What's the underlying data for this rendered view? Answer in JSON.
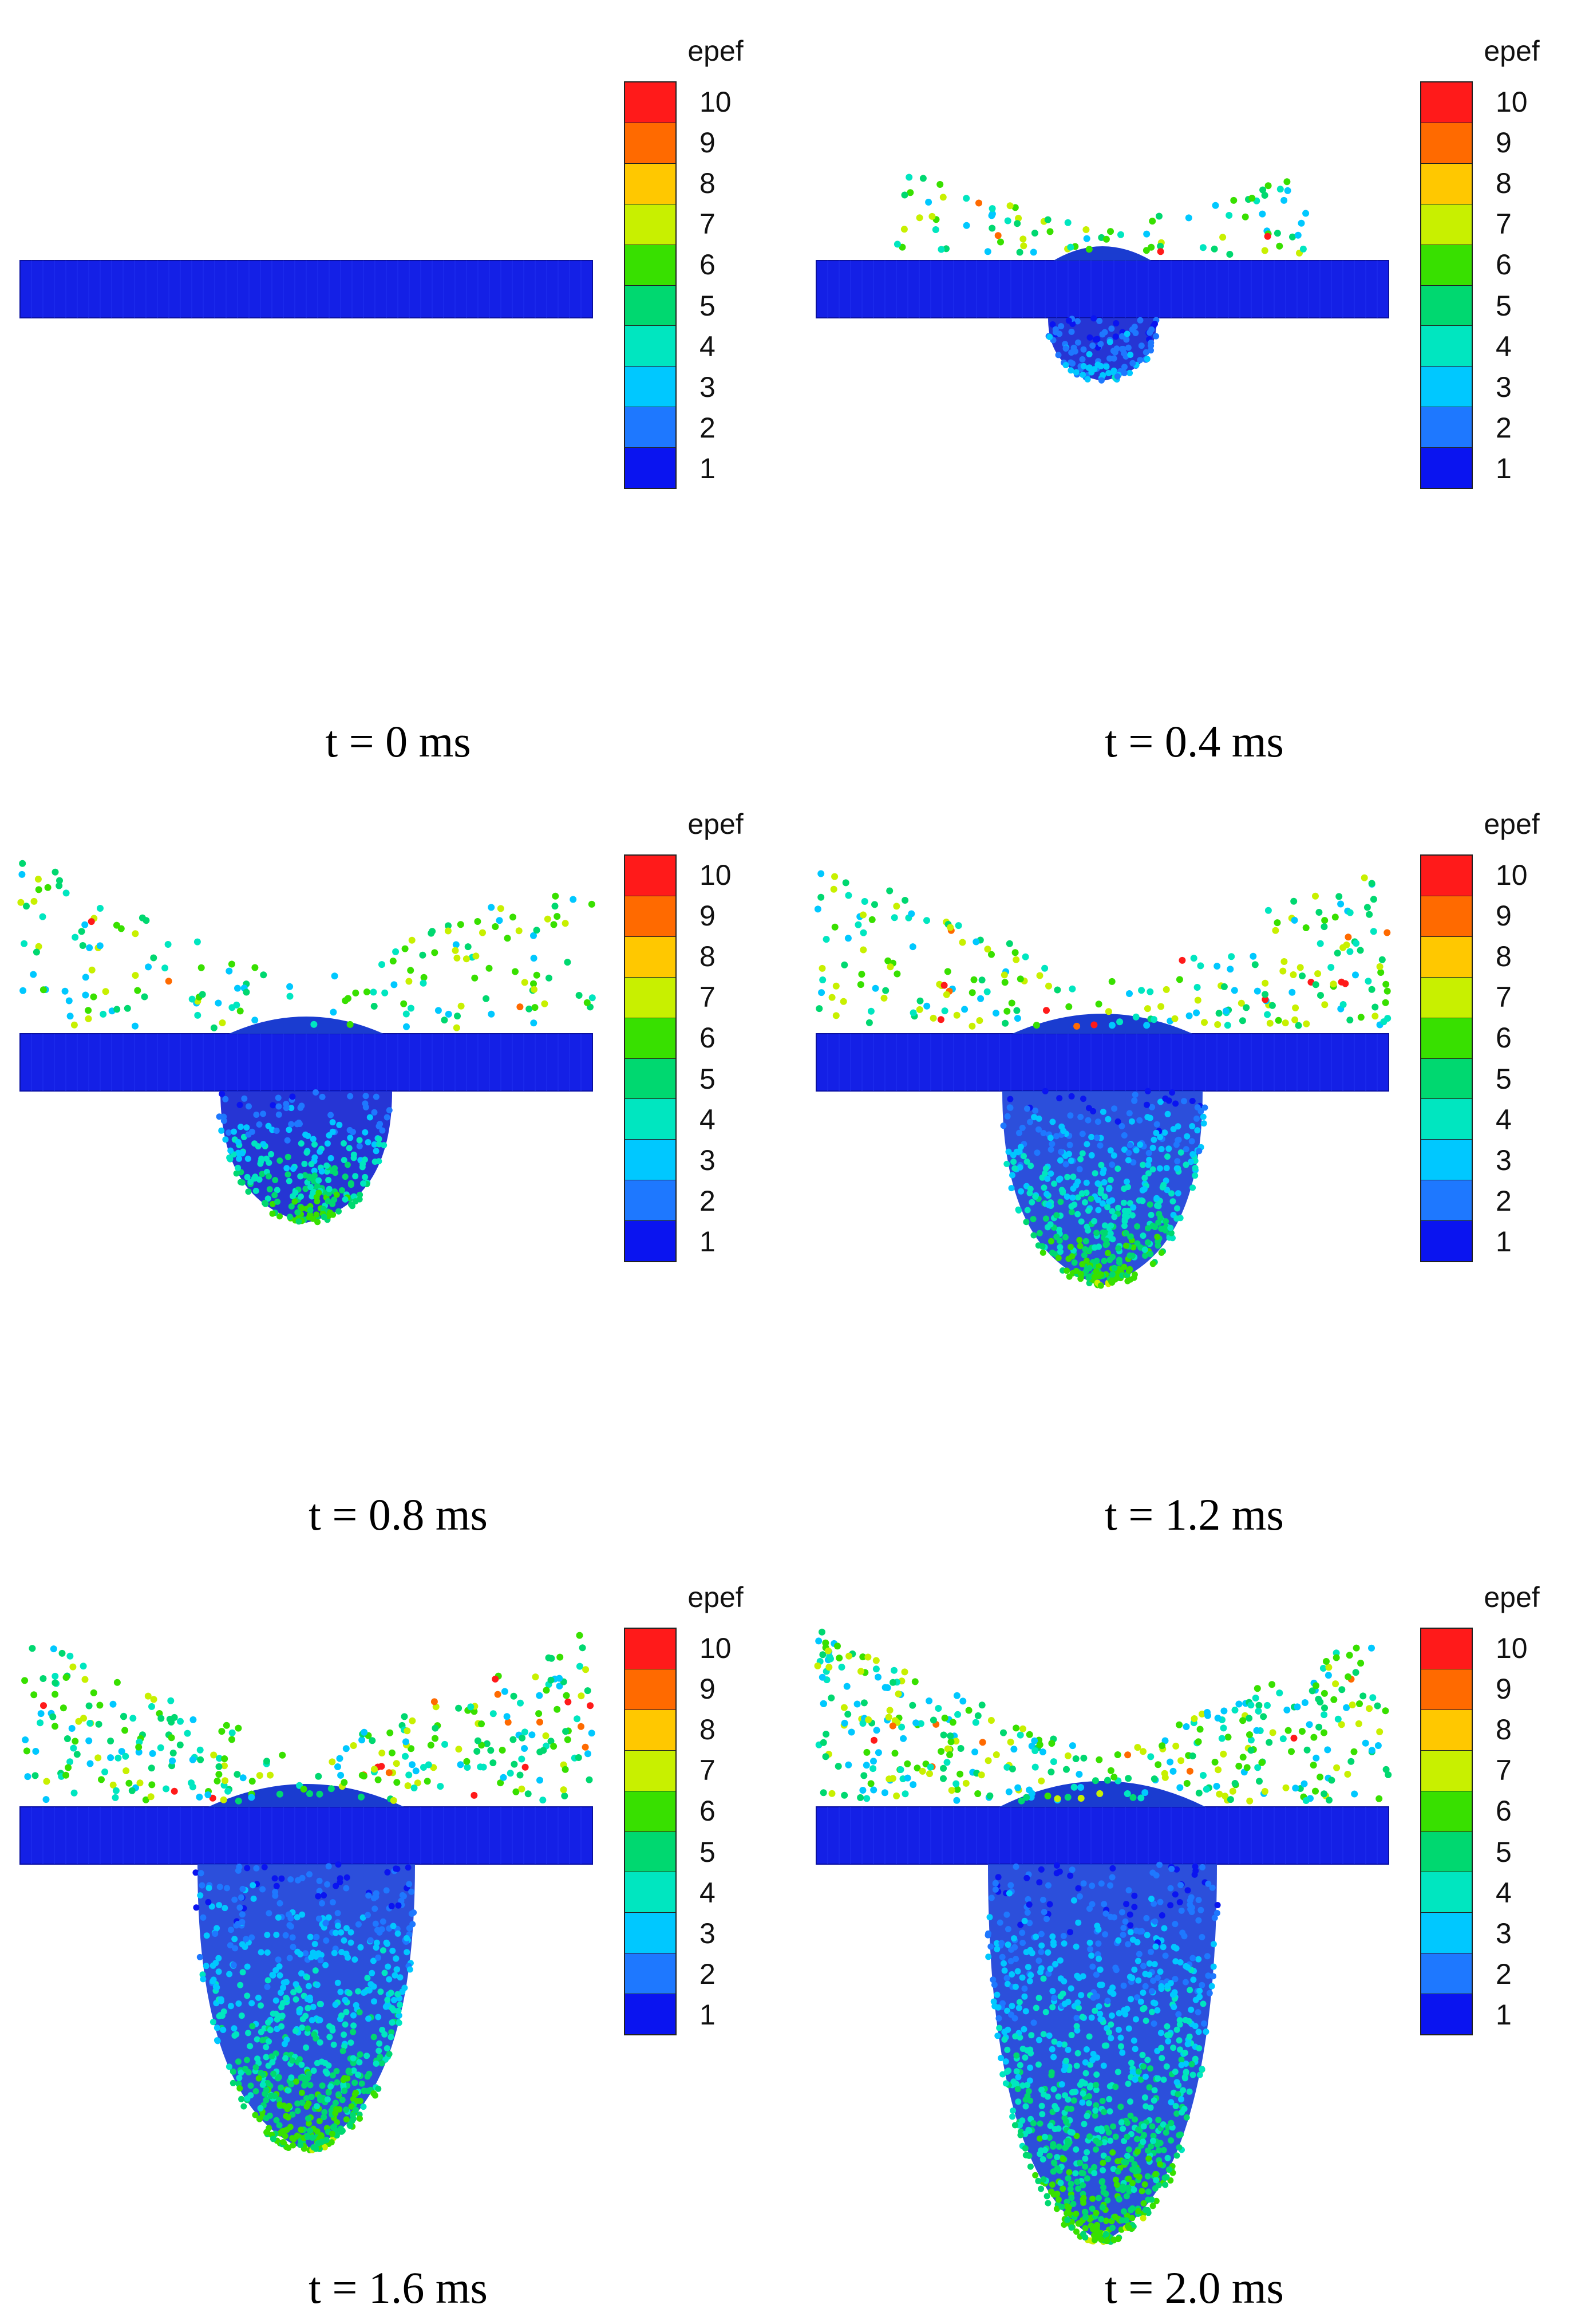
{
  "legend": {
    "title": "epef",
    "levels": [
      "10",
      "9",
      "8",
      "7",
      "6",
      "5",
      "4",
      "3",
      "2",
      "1"
    ],
    "colors": [
      "#ff1a1a",
      "#ff6a00",
      "#ffc800",
      "#c8f000",
      "#38e000",
      "#00d870",
      "#00e6c0",
      "#00c8ff",
      "#1e78ff",
      "#0a14f0"
    ]
  },
  "panels": [
    {
      "caption": "t = 0 ms",
      "stage": 0
    },
    {
      "caption": "t = 0.4 ms",
      "stage": 1
    },
    {
      "caption": "t = 0.8 ms",
      "stage": 2
    },
    {
      "caption": "t = 1.2 ms",
      "stage": 3
    },
    {
      "caption": "t = 1.6 ms",
      "stage": 4
    },
    {
      "caption": "t = 2.0 ms",
      "stage": 5
    }
  ]
}
